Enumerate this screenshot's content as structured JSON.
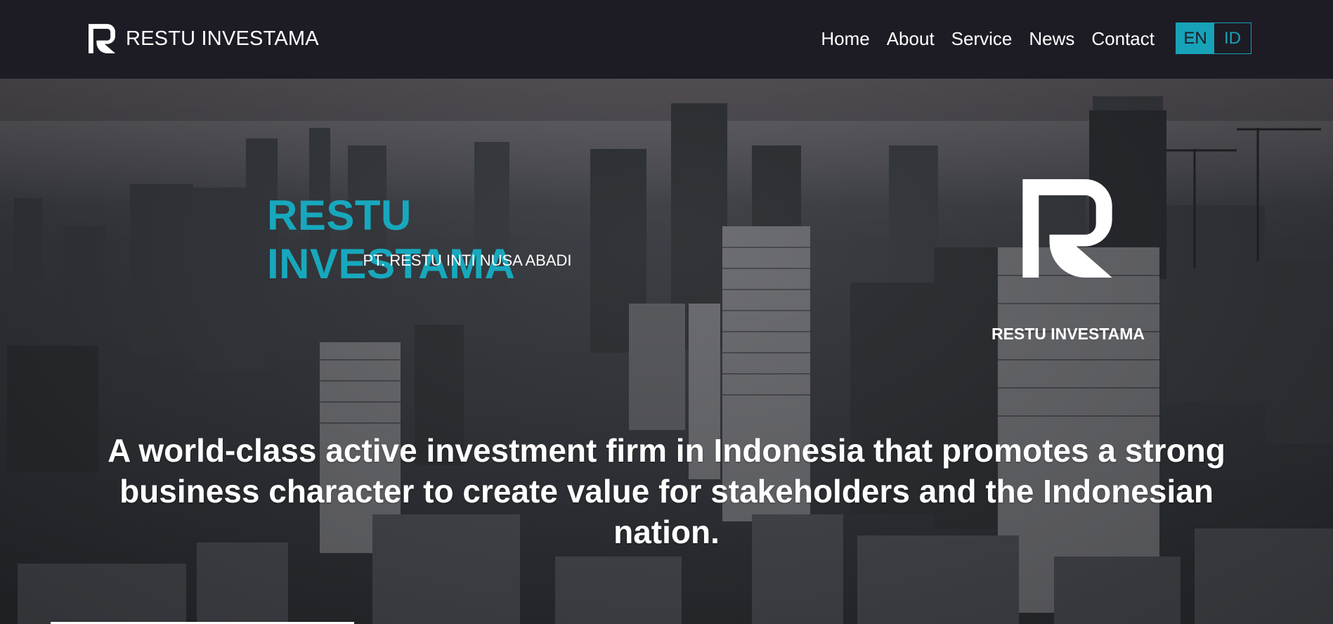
{
  "navbar": {
    "brand_name": "RESTU INVESTAMA",
    "logo_icon": "r-logo-icon",
    "links": [
      {
        "label": "Home"
      },
      {
        "label": "About"
      },
      {
        "label": "Service"
      },
      {
        "label": "News"
      },
      {
        "label": "Contact"
      }
    ],
    "languages": [
      {
        "label": "EN",
        "active": true
      },
      {
        "label": "ID",
        "active": false
      }
    ]
  },
  "hero": {
    "title": "RESTU INVESTAMA",
    "subtitle": "PT. RESTU INTI NUSA ABADI",
    "logo_icon": "r-logo-icon",
    "logo_label": "RESTU INVESTAMA",
    "tagline": "A world-class active investment firm in Indonesia that promotes a strong business character to create value for stakeholders and the Indonesian nation."
  },
  "colors": {
    "accent": "#17a2b8",
    "title": "#17a8bd",
    "navbar_bg": "#1d1c25",
    "text": "#ffffff"
  }
}
